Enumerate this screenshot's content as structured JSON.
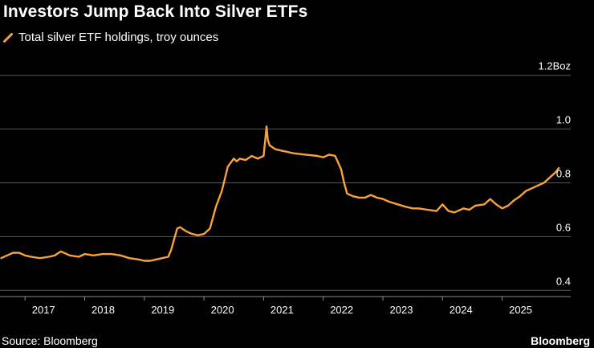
{
  "chart_data": {
    "type": "line",
    "title": "Investors Jump Back Into Silver ETFs",
    "series": [
      {
        "name": "Total silver ETF holdings, troy ounces",
        "color": "#f7a23a",
        "x": [
          2016.6,
          2016.7,
          2016.8,
          2016.9,
          2017.0,
          2017.1,
          2017.25,
          2017.4,
          2017.5,
          2017.6,
          2017.75,
          2017.9,
          2018.0,
          2018.15,
          2018.3,
          2018.45,
          2018.6,
          2018.75,
          2018.9,
          2019.0,
          2019.1,
          2019.2,
          2019.3,
          2019.4,
          2019.45,
          2019.5,
          2019.55,
          2019.6,
          2019.7,
          2019.8,
          2019.9,
          2020.0,
          2020.1,
          2020.15,
          2020.2,
          2020.3,
          2020.4,
          2020.5,
          2020.55,
          2020.6,
          2020.7,
          2020.8,
          2020.9,
          2021.0,
          2021.05,
          2021.07,
          2021.1,
          2021.2,
          2021.3,
          2021.4,
          2021.5,
          2021.7,
          2021.9,
          2022.0,
          2022.1,
          2022.2,
          2022.3,
          2022.35,
          2022.4,
          2022.5,
          2022.6,
          2022.7,
          2022.8,
          2022.9,
          2023.0,
          2023.1,
          2023.25,
          2023.4,
          2023.5,
          2023.6,
          2023.75,
          2023.9,
          2024.0,
          2024.1,
          2024.2,
          2024.3,
          2024.35,
          2024.45,
          2024.55,
          2024.7,
          2024.8,
          2024.9,
          2025.0,
          2025.1,
          2025.2,
          2025.3,
          2025.4,
          2025.5,
          2025.6,
          2025.7,
          2025.8,
          2025.9,
          2025.95
        ],
        "values": [
          0.52,
          0.53,
          0.54,
          0.54,
          0.53,
          0.525,
          0.52,
          0.525,
          0.53,
          0.545,
          0.53,
          0.525,
          0.535,
          0.53,
          0.535,
          0.535,
          0.53,
          0.52,
          0.515,
          0.51,
          0.51,
          0.515,
          0.52,
          0.525,
          0.55,
          0.59,
          0.63,
          0.635,
          0.62,
          0.61,
          0.605,
          0.61,
          0.63,
          0.67,
          0.71,
          0.77,
          0.86,
          0.89,
          0.88,
          0.89,
          0.885,
          0.9,
          0.89,
          0.9,
          1.01,
          0.96,
          0.94,
          0.925,
          0.92,
          0.915,
          0.91,
          0.905,
          0.9,
          0.895,
          0.905,
          0.9,
          0.85,
          0.8,
          0.76,
          0.75,
          0.745,
          0.745,
          0.755,
          0.745,
          0.74,
          0.73,
          0.72,
          0.71,
          0.705,
          0.705,
          0.7,
          0.695,
          0.72,
          0.695,
          0.69,
          0.7,
          0.705,
          0.7,
          0.715,
          0.72,
          0.74,
          0.72,
          0.705,
          0.715,
          0.735,
          0.75,
          0.77,
          0.78,
          0.79,
          0.8,
          0.82,
          0.84,
          0.855
        ]
      }
    ],
    "xlim": [
      2016.58,
      2026.15
    ],
    "ylim": [
      0.38,
      1.22
    ],
    "x_ticks": [
      {
        "value": 2017.0,
        "label": "2017"
      },
      {
        "value": 2018.0,
        "label": "2018"
      },
      {
        "value": 2019.0,
        "label": "2019"
      },
      {
        "value": 2020.0,
        "label": "2020"
      },
      {
        "value": 2021.0,
        "label": "2021"
      },
      {
        "value": 2022.0,
        "label": "2022"
      },
      {
        "value": 2023.0,
        "label": "2023"
      },
      {
        "value": 2024.0,
        "label": "2024"
      },
      {
        "value": 2025.0,
        "label": "2025"
      }
    ],
    "y_ticks": [
      {
        "value": 0.4,
        "label": "0.4"
      },
      {
        "value": 0.6,
        "label": "0.6"
      },
      {
        "value": 0.8,
        "label": "0.8"
      },
      {
        "value": 1.0,
        "label": "1.0"
      },
      {
        "value": 1.2,
        "label": "1.2Boz"
      }
    ],
    "grid": true,
    "legend_position": "top-left"
  },
  "header": {
    "title": "Investors Jump Back Into Silver ETFs",
    "legend_label": "Total silver ETF holdings, troy ounces"
  },
  "footer": {
    "source": "Source: Bloomberg",
    "brand": "Bloomberg"
  }
}
